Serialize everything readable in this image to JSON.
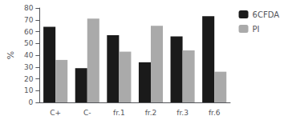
{
  "chart_data": {
    "type": "bar",
    "ylabel": "%",
    "categories": [
      "C+",
      "C-",
      "fr.1",
      "fr.2",
      "fr.3",
      "fr.6"
    ],
    "series": [
      {
        "name": "6CFDA",
        "color": "#1a1a1a",
        "values": [
          64,
          29,
          57,
          34,
          56,
          73
        ]
      },
      {
        "name": "PI",
        "color": "#aaaaaa",
        "values": [
          36,
          71,
          43,
          65,
          44,
          26
        ]
      }
    ],
    "ylim": [
      0,
      80
    ],
    "yticks": [
      0,
      10,
      20,
      30,
      40,
      50,
      60,
      70,
      80
    ],
    "legend": "right",
    "grid": false
  }
}
